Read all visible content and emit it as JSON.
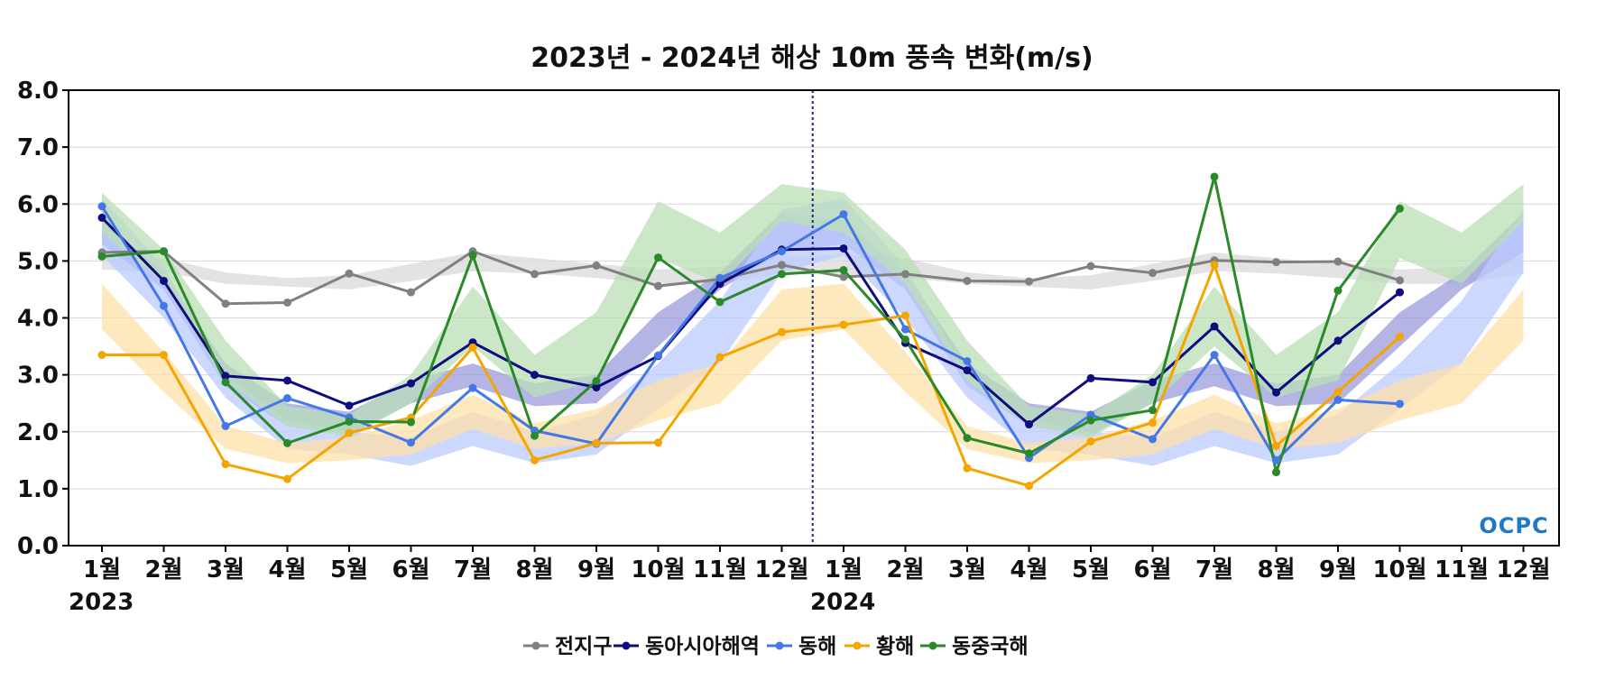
{
  "chart_data": {
    "type": "line",
    "title": "2023년 - 2024년 해상 10m 풍속 변화(m/s)",
    "ylim": [
      0,
      8
    ],
    "yticks": [
      "0.0",
      "1.0",
      "2.0",
      "3.0",
      "4.0",
      "5.0",
      "6.0",
      "7.0",
      "8.0"
    ],
    "categories": [
      "1월",
      "2월",
      "3월",
      "4월",
      "5월",
      "6월",
      "7월",
      "8월",
      "9월",
      "10월",
      "11월",
      "12월",
      "1월",
      "2월",
      "3월",
      "4월",
      "5월",
      "6월",
      "7월",
      "8월",
      "9월",
      "10월",
      "11월",
      "12월"
    ],
    "years": [
      {
        "label": "2023",
        "start_index": 0
      },
      {
        "label": "2024",
        "start_index": 12
      }
    ],
    "divider_between_index": [
      11,
      12
    ],
    "grid": "horizontal",
    "legend_position": "bottom",
    "series": [
      {
        "name": "전지구",
        "color": "#808080",
        "band_color": "#d9d9d9",
        "values": [
          5.15,
          5.17,
          4.25,
          4.27,
          4.78,
          4.45,
          5.17,
          4.77,
          4.92,
          4.56,
          4.68,
          4.93,
          4.72,
          4.77,
          4.65,
          4.64,
          4.91,
          4.79,
          5.01,
          4.98,
          4.99,
          4.66,
          null,
          null
        ],
        "band_low": [
          4.85,
          4.8,
          4.6,
          4.55,
          4.5,
          4.65,
          4.82,
          4.78,
          4.7,
          4.6,
          4.6,
          4.78,
          4.75,
          4.7,
          4.6,
          4.55,
          4.5,
          4.65,
          4.82,
          4.78,
          4.7,
          4.6,
          4.6,
          4.78
        ],
        "band_high": [
          5.1,
          5.05,
          4.8,
          4.7,
          4.75,
          4.95,
          5.15,
          5.05,
          4.95,
          4.85,
          4.9,
          5.1,
          5.1,
          5.05,
          4.8,
          4.7,
          4.75,
          4.95,
          5.15,
          5.05,
          4.95,
          4.85,
          4.9,
          5.1
        ]
      },
      {
        "name": "동아시아해역",
        "color": "#0d0d80",
        "band_color": "#9b9bdc",
        "values": [
          5.76,
          4.65,
          2.98,
          2.9,
          2.46,
          2.85,
          3.57,
          3.0,
          2.78,
          3.33,
          4.6,
          5.2,
          5.22,
          3.56,
          3.08,
          2.13,
          2.94,
          2.87,
          3.85,
          2.69,
          3.6,
          4.45,
          null,
          null
        ],
        "band_low": [
          5.3,
          4.5,
          2.8,
          2.1,
          1.95,
          2.5,
          2.8,
          2.45,
          2.5,
          3.5,
          4.5,
          5.15,
          5.3,
          4.5,
          2.8,
          2.1,
          1.95,
          2.5,
          2.8,
          2.45,
          2.5,
          3.5,
          4.5,
          5.15
        ],
        "band_high": [
          5.7,
          4.8,
          3.2,
          2.5,
          2.35,
          2.9,
          3.2,
          2.85,
          3.0,
          4.1,
          4.8,
          5.85,
          5.7,
          4.8,
          3.2,
          2.5,
          2.35,
          2.9,
          3.2,
          2.85,
          3.0,
          4.1,
          4.8,
          5.85
        ]
      },
      {
        "name": "동해",
        "color": "#4477e8",
        "band_color": "#bccbff",
        "values": [
          5.96,
          4.21,
          2.1,
          2.59,
          2.25,
          1.81,
          2.77,
          2.02,
          1.79,
          3.34,
          4.7,
          5.17,
          5.82,
          3.8,
          3.24,
          1.54,
          2.3,
          1.87,
          3.35,
          1.5,
          2.56,
          2.49,
          null,
          null
        ],
        "band_low": [
          5.1,
          4.0,
          2.6,
          1.7,
          1.6,
          1.4,
          1.75,
          1.45,
          1.6,
          2.4,
          3.2,
          4.8,
          5.1,
          4.0,
          2.6,
          1.7,
          1.6,
          1.4,
          1.75,
          1.45,
          1.6,
          2.4,
          3.2,
          4.8
        ],
        "band_high": [
          6.1,
          4.9,
          3.0,
          2.2,
          2.0,
          1.9,
          2.35,
          2.0,
          2.3,
          3.2,
          4.3,
          5.9,
          6.1,
          4.9,
          3.0,
          2.2,
          2.0,
          1.9,
          2.35,
          2.0,
          2.3,
          3.2,
          4.3,
          5.9
        ]
      },
      {
        "name": "황해",
        "color": "#f5a500",
        "band_color": "#fde0a8",
        "values": [
          3.35,
          3.35,
          1.43,
          1.17,
          1.98,
          2.25,
          3.48,
          1.5,
          1.8,
          1.81,
          3.31,
          3.75,
          3.88,
          4.04,
          1.36,
          1.05,
          1.83,
          2.16,
          4.93,
          1.75,
          2.7,
          3.67,
          null,
          null
        ],
        "band_low": [
          3.8,
          2.7,
          1.7,
          1.45,
          1.5,
          1.6,
          2.05,
          1.7,
          1.8,
          2.2,
          2.5,
          3.6,
          3.8,
          2.7,
          1.7,
          1.45,
          1.5,
          1.6,
          2.05,
          1.7,
          1.8,
          2.2,
          2.5,
          3.6
        ],
        "band_high": [
          4.6,
          3.4,
          2.1,
          1.8,
          1.9,
          2.2,
          2.65,
          2.15,
          2.4,
          2.9,
          3.2,
          4.5,
          4.6,
          3.4,
          2.1,
          1.8,
          1.9,
          2.2,
          2.65,
          2.15,
          2.4,
          2.9,
          3.2,
          4.5
        ]
      },
      {
        "name": "동중국해",
        "color": "#2a8a2a",
        "band_color": "#b9dfb5",
        "values": [
          5.08,
          5.17,
          2.87,
          1.8,
          2.18,
          2.17,
          5.1,
          1.93,
          2.89,
          5.06,
          4.28,
          4.77,
          4.84,
          3.62,
          1.89,
          1.62,
          2.2,
          2.38,
          6.48,
          1.29,
          4.48,
          5.92,
          null,
          null
        ],
        "band_low": [
          5.5,
          4.6,
          2.9,
          2.1,
          1.9,
          2.5,
          3.5,
          2.6,
          2.9,
          5.05,
          4.6,
          5.7,
          5.5,
          4.6,
          2.9,
          2.1,
          1.9,
          2.5,
          3.5,
          2.6,
          2.9,
          5.05,
          4.6,
          5.7
        ],
        "band_high": [
          6.2,
          5.2,
          3.6,
          2.45,
          2.3,
          3.0,
          4.55,
          3.35,
          4.1,
          6.05,
          5.5,
          6.35,
          6.2,
          5.2,
          3.6,
          2.45,
          2.3,
          3.0,
          4.55,
          3.35,
          4.1,
          6.05,
          5.5,
          6.35
        ]
      }
    ]
  },
  "logo": {
    "text": "OCPC",
    "color": "#1f78c8"
  }
}
